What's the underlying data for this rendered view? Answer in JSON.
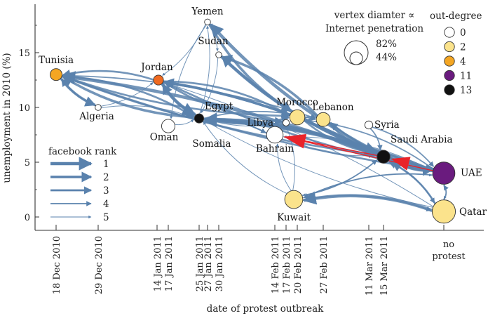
{
  "chart_data": {
    "type": "network-scatter",
    "xlabel": "date of protest outbreak",
    "ylabel": "unemployment in 2010 (%)",
    "ylim": [
      -1.5,
      19.5
    ],
    "yticks": [
      0,
      5,
      10,
      15
    ],
    "xticks": [
      "18 Dec 2010",
      "29 Dec 2010",
      "14 Jan 2011",
      "17 Jan 2011",
      "25 Jan 2011",
      "27 Jan 2011",
      "30 Jan 2011",
      "14 Feb 2011",
      "17 Feb 2011",
      "20 Feb 2011",
      "27 Feb 2011",
      "11 Mar 2011",
      "15 Mar 2011"
    ],
    "no_protest_label": [
      "no",
      "protest"
    ],
    "countries": [
      {
        "name": "Tunisia",
        "date": "18 Dec 2010",
        "unemployment": 13.0,
        "internet_penetration": 36,
        "out_degree": 4
      },
      {
        "name": "Algeria",
        "date": "29 Dec 2010",
        "unemployment": 10.0,
        "internet_penetration": 12,
        "out_degree": 0
      },
      {
        "name": "Jordan",
        "date": "14 Jan 2011",
        "unemployment": 12.5,
        "internet_penetration": 28,
        "out_degree": 4
      },
      {
        "name": "Oman",
        "date": "17 Jan 2011",
        "unemployment": 8.3,
        "internet_penetration": 42,
        "out_degree": 0
      },
      {
        "name": "Egypt",
        "date": "25 Jan 2011",
        "unemployment": 9.0,
        "internet_penetration": 25,
        "out_degree": 13
      },
      {
        "name": "Yemen",
        "date": "27 Jan 2011",
        "unemployment": 17.8,
        "internet_penetration": 12,
        "out_degree": 0
      },
      {
        "name": "Sudan",
        "date": "30 Jan 2011",
        "unemployment": 14.8,
        "internet_penetration": 12,
        "out_degree": 0
      },
      {
        "name": "Bahrain",
        "date": "14 Feb 2011",
        "unemployment": 7.5,
        "internet_penetration": 55,
        "out_degree": 0
      },
      {
        "name": "Libya",
        "date": "17 Feb 2011",
        "unemployment": 8.6,
        "internet_penetration": 14,
        "out_degree": 0
      },
      {
        "name": "Morocco",
        "date": "20 Feb 2011",
        "unemployment": 9.1,
        "internet_penetration": 49,
        "out_degree": 2
      },
      {
        "name": "Kuwait",
        "date": "20 Feb 2011",
        "unemployment": 1.6,
        "internet_penetration": 61,
        "out_degree": 2
      },
      {
        "name": "Lebanon",
        "date": "27 Feb 2011",
        "unemployment": 8.9,
        "internet_penetration": 44,
        "out_degree": 2
      },
      {
        "name": "Syria",
        "date": "15 Mar 2011",
        "unemployment": 8.4,
        "internet_penetration": 20,
        "out_degree": 0
      },
      {
        "name": "Saudi Arabia",
        "date": "15 Mar 2011",
        "unemployment": 5.5,
        "internet_penetration": 40,
        "out_degree": 13
      },
      {
        "name": "UAE",
        "date": "no protest",
        "unemployment": 4.0,
        "internet_penetration": 78,
        "out_degree": 11
      },
      {
        "name": "Qatar",
        "date": "no protest",
        "unemployment": 0.5,
        "internet_penetration": 82,
        "out_degree": 2
      }
    ],
    "edges": [
      {
        "from": "Saudi Arabia",
        "to": "Tunisia",
        "rank": 1
      },
      {
        "from": "Egypt",
        "to": "Tunisia",
        "rank": 2
      },
      {
        "from": "Tunisia",
        "to": "Algeria",
        "rank": 2
      },
      {
        "from": "Algeria",
        "to": "Tunisia",
        "rank": 3
      },
      {
        "from": "Jordan",
        "to": "Tunisia",
        "rank": 3
      },
      {
        "from": "Egypt",
        "to": "Jordan",
        "rank": 2
      },
      {
        "from": "Jordan",
        "to": "Egypt",
        "rank": 1
      },
      {
        "from": "Tunisia",
        "to": "Egypt",
        "rank": 3
      },
      {
        "from": "Tunisia",
        "to": "Morocco",
        "rank": 3
      },
      {
        "from": "Tunisia",
        "to": "Lebanon",
        "rank": 4
      },
      {
        "from": "Jordan",
        "to": "Libya",
        "rank": 3
      },
      {
        "from": "Jordan",
        "to": "Morocco",
        "rank": 3
      },
      {
        "from": "Algeria",
        "to": "Jordan",
        "rank": 5
      },
      {
        "from": "Algeria",
        "to": "Egypt",
        "rank": 5
      },
      {
        "from": "Egypt",
        "to": "Yemen",
        "rank": 5
      },
      {
        "from": "Yemen",
        "to": "Jordan",
        "rank": 5
      },
      {
        "from": "Yemen",
        "to": "Oman",
        "rank": 5
      },
      {
        "from": "Saudi Arabia",
        "to": "Yemen",
        "rank": 1
      },
      {
        "from": "Yemen",
        "to": "Morocco",
        "rank": 2
      },
      {
        "from": "Sudan",
        "to": "Egypt",
        "rank": 5
      },
      {
        "from": "Lebanon",
        "to": "Sudan",
        "rank": 2
      },
      {
        "from": "Saudi Arabia",
        "to": "Sudan",
        "rank": 2
      },
      {
        "from": "Saudi Arabia",
        "to": "Egypt",
        "rank": 1
      },
      {
        "from": "Egypt",
        "to": "Saudi Arabia",
        "rank": 2
      },
      {
        "from": "UAE",
        "to": "Egypt",
        "rank": 1
      },
      {
        "from": "UAE",
        "to": "Tunisia",
        "rank": 3
      },
      {
        "from": "Bahrain",
        "to": "Egypt",
        "rank": 4
      },
      {
        "from": "Kuwait",
        "to": "Egypt",
        "rank": 5
      },
      {
        "from": "Oman",
        "to": "Egypt",
        "rank": 5
      },
      {
        "from": "Morocco",
        "to": "Lebanon",
        "rank": 4
      },
      {
        "from": "Lebanon",
        "to": "Saudi Arabia",
        "rank": 3
      },
      {
        "from": "Syria",
        "to": "Saudi Arabia",
        "rank": 4
      },
      {
        "from": "Saudi Arabia",
        "to": "UAE",
        "rank": 2
      },
      {
        "from": "UAE",
        "to": "Saudi Arabia",
        "rank": 1
      },
      {
        "from": "Qatar",
        "to": "Saudi Arabia",
        "rank": 3
      },
      {
        "from": "Saudi Arabia",
        "to": "Qatar",
        "rank": 4
      },
      {
        "from": "Kuwait",
        "to": "Saudi Arabia",
        "rank": 4
      },
      {
        "from": "Saudi Arabia",
        "to": "Kuwait",
        "rank": 5
      },
      {
        "from": "Qatar",
        "to": "Kuwait",
        "rank": 1
      },
      {
        "from": "Kuwait",
        "to": "Qatar",
        "rank": 4
      },
      {
        "from": "UAE",
        "to": "Kuwait",
        "rank": 4
      },
      {
        "from": "Kuwait",
        "to": "UAE",
        "rank": 5
      },
      {
        "from": "Qatar",
        "to": "UAE",
        "rank": 4
      },
      {
        "from": "UAE",
        "to": "Qatar",
        "rank": 5
      },
      {
        "from": "UAE",
        "to": "Bahrain",
        "rank": 5
      },
      {
        "from": "Qatar",
        "to": "Egypt",
        "rank": 5
      },
      {
        "from": "UAE",
        "to": "Morocco",
        "rank": 4
      },
      {
        "from": "UAE",
        "to": "Lebanon",
        "rank": 3
      },
      {
        "from": "Lebanon",
        "to": "UAE",
        "rank": 4
      },
      {
        "from": "Syria",
        "to": "UAE",
        "rank": 4
      },
      {
        "from": "Bahrain",
        "to": "Saudi Arabia",
        "rank": 5
      },
      {
        "from": "Kuwait",
        "to": "Bahrain",
        "rank": 5
      },
      {
        "from": "Kuwait",
        "to": "Libya",
        "rank": 5
      },
      {
        "from": "Libya",
        "to": "Egypt",
        "rank": 5
      },
      {
        "from": "Morocco",
        "to": "Saudi Arabia",
        "rank": 3
      },
      {
        "from": "UAE",
        "to": "Jordan",
        "rank": 3
      },
      {
        "from": "Saudi Arabia",
        "to": "Jordan",
        "rank": 2
      },
      {
        "from": "Jordan",
        "to": "Saudi Arabia",
        "rank": 2
      },
      {
        "from": "Tunisia",
        "to": "Saudi Arabia",
        "rank": 3
      },
      {
        "from": "Egypt",
        "to": "UAE",
        "rank": 3
      },
      {
        "from": "Egypt",
        "to": "Morocco",
        "rank": 3
      },
      {
        "from": "Egypt",
        "to": "Lebanon",
        "rank": 4
      },
      {
        "from": "Sudan",
        "to": "Saudi Arabia",
        "rank": 1
      },
      {
        "from": "Yemen",
        "to": "Sudan",
        "rank": 5
      },
      {
        "from": "Qatar",
        "to": "Jordan",
        "rank": 5
      },
      {
        "from": "Egypt",
        "to": "Bahrain",
        "rank": 4
      }
    ],
    "highlight_edges": [
      {
        "from": "Saudi Arabia",
        "to": "Bahrain",
        "color": "#e8232a"
      },
      {
        "from": "UAE",
        "to": "Bahrain",
        "color": "#e8232a"
      }
    ],
    "legend_facebook_rank": {
      "title": "facebook rank",
      "ranks": [
        "1",
        "2",
        "3",
        "4",
        "5"
      ]
    },
    "legend_out_degree": {
      "title": "out-degree",
      "items": [
        {
          "label": "0",
          "color": "#ffffff"
        },
        {
          "label": "2",
          "color": "#fbe38c"
        },
        {
          "label": "4",
          "color": "#f4a623"
        },
        {
          "label": "11",
          "color": "#6a1b7e"
        },
        {
          "label": "13",
          "color": "#111111"
        }
      ]
    },
    "legend_vertex": {
      "title_line1": "vertex diamter ∝",
      "title_line2": "Internet penetration",
      "values": [
        "82%",
        "44%"
      ]
    },
    "colors": {
      "edge": "#5a82ad",
      "highlight": "#e8232a",
      "jordan": "#f06a20"
    }
  }
}
